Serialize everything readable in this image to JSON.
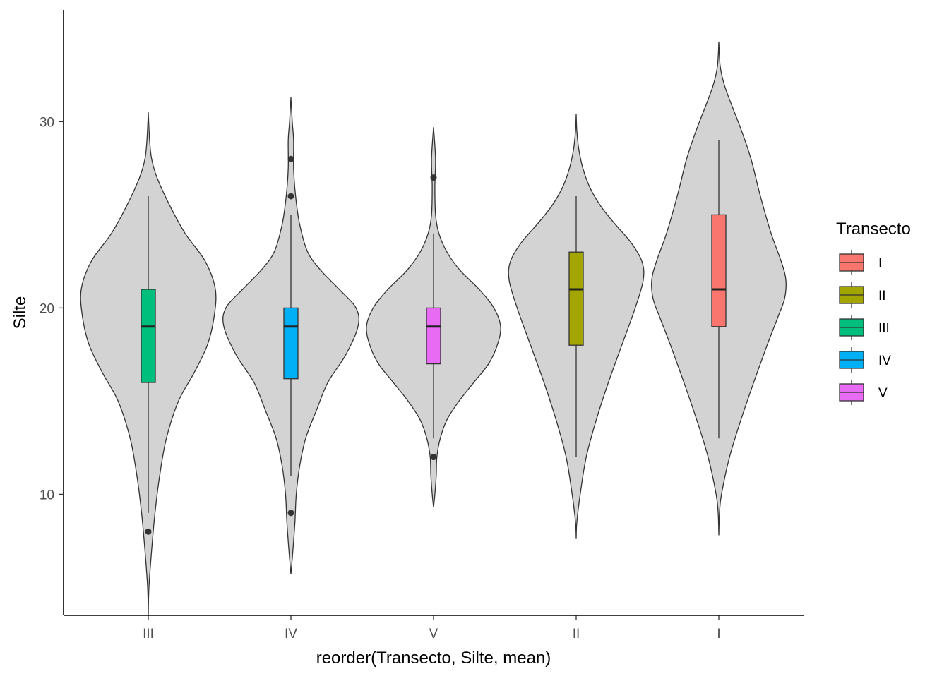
{
  "chart_data": {
    "type": "violin",
    "title": "",
    "xlabel": "reorder(Transecto, Silte, mean)",
    "ylabel": "Silte",
    "categories": [
      "III",
      "IV",
      "V",
      "II",
      "I"
    ],
    "ylim": [
      3.5,
      36
    ],
    "yticks": [
      10,
      20,
      30
    ],
    "grid": false,
    "legend": {
      "title": "Transecto",
      "position": "right",
      "entries": [
        {
          "label": "I",
          "color": "#F8766D"
        },
        {
          "label": "II",
          "color": "#A3A500"
        },
        {
          "label": "III",
          "color": "#00BF7D"
        },
        {
          "label": "IV",
          "color": "#00B0F6"
        },
        {
          "label": "V",
          "color": "#E76BF3"
        }
      ]
    },
    "violin_fill": "#D3D3D3",
    "violin_stroke": "#333333",
    "groups": [
      {
        "name": "III",
        "color": "#00BF7D",
        "box": {
          "q1": 16,
          "median": 19,
          "q3": 21,
          "whisker_low": 9,
          "whisker_high": 26
        },
        "outliers": [
          8
        ],
        "violin_range": [
          3.5,
          30.5
        ],
        "density": [
          [
            3.5,
            0.0
          ],
          [
            5.0,
            0.01
          ],
          [
            7.0,
            0.05
          ],
          [
            9.0,
            0.1
          ],
          [
            11.0,
            0.17
          ],
          [
            13.0,
            0.27
          ],
          [
            15.0,
            0.45
          ],
          [
            16.5,
            0.68
          ],
          [
            18.0,
            0.88
          ],
          [
            19.5,
            0.98
          ],
          [
            21.0,
            1.0
          ],
          [
            22.5,
            0.85
          ],
          [
            24.0,
            0.55
          ],
          [
            25.5,
            0.32
          ],
          [
            27.0,
            0.13
          ],
          [
            28.0,
            0.05
          ],
          [
            29.0,
            0.02
          ],
          [
            30.5,
            0.0
          ]
        ]
      },
      {
        "name": "IV",
        "color": "#00B0F6",
        "box": {
          "q1": 16.2,
          "median": 19,
          "q3": 20,
          "whisker_low": 11,
          "whisker_high": 25
        },
        "outliers": [
          9,
          26,
          28
        ],
        "violin_range": [
          5.7,
          31.3
        ],
        "density": [
          [
            5.7,
            0.0
          ],
          [
            7.0,
            0.03
          ],
          [
            8.5,
            0.06
          ],
          [
            10.0,
            0.08
          ],
          [
            11.5,
            0.13
          ],
          [
            13.0,
            0.22
          ],
          [
            14.5,
            0.38
          ],
          [
            16.0,
            0.55
          ],
          [
            17.5,
            0.82
          ],
          [
            19.0,
            1.0
          ],
          [
            20.0,
            0.97
          ],
          [
            21.0,
            0.72
          ],
          [
            22.0,
            0.45
          ],
          [
            23.0,
            0.25
          ],
          [
            24.5,
            0.13
          ],
          [
            26.0,
            0.07
          ],
          [
            27.5,
            0.04
          ],
          [
            29.0,
            0.04
          ],
          [
            30.0,
            0.02
          ],
          [
            31.3,
            0.0
          ]
        ]
      },
      {
        "name": "V",
        "color": "#E76BF3",
        "box": {
          "q1": 17,
          "median": 19,
          "q3": 20,
          "whisker_low": 13,
          "whisker_high": 24
        },
        "outliers": [
          12,
          27
        ],
        "violin_range": [
          9.3,
          29.7
        ],
        "density": [
          [
            9.3,
            0.0
          ],
          [
            10.0,
            0.02
          ],
          [
            11.0,
            0.04
          ],
          [
            12.0,
            0.05
          ],
          [
            13.0,
            0.1
          ],
          [
            14.0,
            0.2
          ],
          [
            15.0,
            0.38
          ],
          [
            16.0,
            0.6
          ],
          [
            17.0,
            0.82
          ],
          [
            18.0,
            0.95
          ],
          [
            19.0,
            1.0
          ],
          [
            20.0,
            0.9
          ],
          [
            21.0,
            0.68
          ],
          [
            22.0,
            0.4
          ],
          [
            23.0,
            0.2
          ],
          [
            24.0,
            0.08
          ],
          [
            25.0,
            0.03
          ],
          [
            26.5,
            0.02
          ],
          [
            28.0,
            0.03
          ],
          [
            29.7,
            0.0
          ]
        ]
      },
      {
        "name": "II",
        "color": "#A3A500",
        "box": {
          "q1": 18,
          "median": 21,
          "q3": 23,
          "whisker_low": 12,
          "whisker_high": 26
        },
        "outliers": [],
        "violin_range": [
          7.6,
          30.4
        ],
        "density": [
          [
            7.6,
            0.0
          ],
          [
            8.5,
            0.01
          ],
          [
            10.0,
            0.06
          ],
          [
            12.0,
            0.15
          ],
          [
            14.0,
            0.3
          ],
          [
            16.0,
            0.48
          ],
          [
            18.0,
            0.68
          ],
          [
            20.0,
            0.88
          ],
          [
            21.5,
            1.0
          ],
          [
            22.5,
            0.98
          ],
          [
            23.5,
            0.82
          ],
          [
            24.5,
            0.58
          ],
          [
            25.5,
            0.36
          ],
          [
            26.5,
            0.2
          ],
          [
            27.5,
            0.1
          ],
          [
            28.5,
            0.04
          ],
          [
            29.5,
            0.01
          ],
          [
            30.4,
            0.0
          ]
        ]
      },
      {
        "name": "I",
        "color": "#F8766D",
        "box": {
          "q1": 19,
          "median": 21,
          "q3": 25,
          "whisker_low": 13,
          "whisker_high": 29
        },
        "outliers": [],
        "violin_range": [
          7.8,
          34.3
        ],
        "density": [
          [
            7.8,
            0.0
          ],
          [
            9.0,
            0.01
          ],
          [
            10.0,
            0.04
          ],
          [
            12.0,
            0.16
          ],
          [
            14.0,
            0.33
          ],
          [
            16.0,
            0.52
          ],
          [
            18.0,
            0.72
          ],
          [
            19.5,
            0.88
          ],
          [
            20.5,
            0.98
          ],
          [
            21.5,
            1.0
          ],
          [
            22.5,
            0.93
          ],
          [
            24.0,
            0.78
          ],
          [
            26.0,
            0.62
          ],
          [
            28.0,
            0.48
          ],
          [
            29.5,
            0.34
          ],
          [
            31.0,
            0.18
          ],
          [
            32.0,
            0.08
          ],
          [
            33.0,
            0.02
          ],
          [
            34.3,
            0.0
          ]
        ]
      }
    ]
  }
}
